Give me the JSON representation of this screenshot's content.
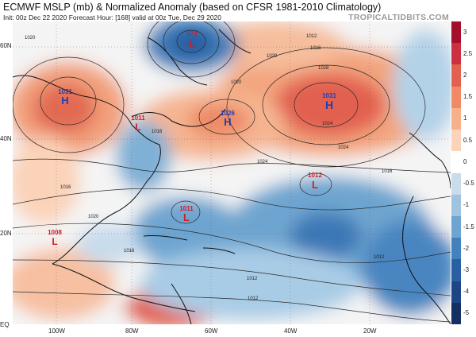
{
  "header": {
    "title": "ECMWF MSLP (mb) & Normalized Anomaly (based on CFSR 1981-2010 Climatology)",
    "subtitle": "Init: 00z Dec 22 2020   Forecast Hour: [168]   valid at 00z Tue, Dec 29 2020",
    "brand": "TROPICALTIDBITS.COM"
  },
  "axes": {
    "lat_labels": [
      "60N",
      "40N",
      "20N",
      "EQ"
    ],
    "lon_labels": [
      "100W",
      "80W",
      "60W",
      "40W",
      "20W"
    ]
  },
  "colorbar": {
    "labels": [
      "3",
      "2.5",
      "2",
      "1.5",
      "1",
      "0.5",
      "0",
      "-0.5",
      "-1",
      "-1.5",
      "-2",
      "-3",
      "-4",
      "-5"
    ],
    "colors": [
      "#a50f2b",
      "#cc3040",
      "#e2604f",
      "#f08a66",
      "#f7b08a",
      "#fbd3b9",
      "#ffffff",
      "#c8dcec",
      "#9fc4e0",
      "#6ea5d0",
      "#4381bc",
      "#2a5fa3",
      "#1c4685",
      "#142f62"
    ]
  },
  "pressure_centers": [
    {
      "type": "H",
      "value": "1031",
      "color": "#1f3fb0"
    },
    {
      "type": "H",
      "value": "1026",
      "color": "#1f3fb0"
    },
    {
      "type": "H",
      "value": "1031",
      "color": "#1f3fb0"
    },
    {
      "type": "L",
      "value": "979",
      "color": "#c8202a"
    },
    {
      "type": "L",
      "value": "1011",
      "color": "#c8202a"
    },
    {
      "type": "L",
      "value": "1012",
      "color": "#c8202a"
    },
    {
      "type": "L",
      "value": "1011",
      "color": "#c8202a"
    },
    {
      "type": "L",
      "value": "1008",
      "color": "#c8202a"
    }
  ],
  "isobar_labels": [
    "1020",
    "1016",
    "1012",
    "1028",
    "1024",
    "1024",
    "1016",
    "1016",
    "1020",
    "1016",
    "1012",
    "1012",
    "1024",
    "1020",
    "1016",
    "1020",
    "1012"
  ]
}
